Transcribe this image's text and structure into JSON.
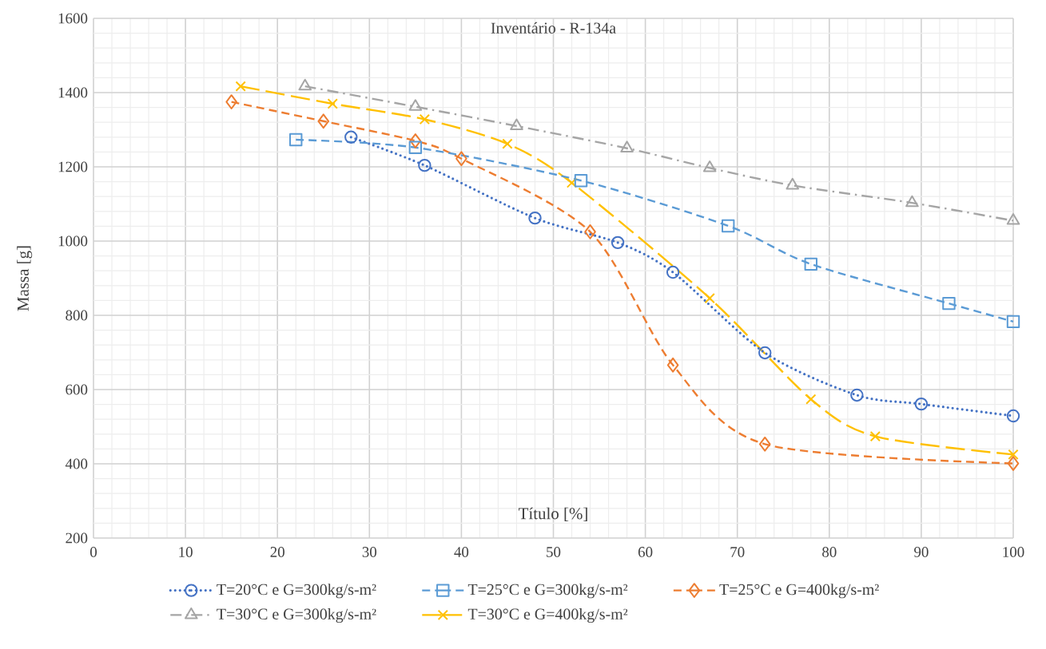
{
  "chart_data": {
    "type": "line",
    "title": "Inventário - R-134a",
    "xlabel": "Título [%]",
    "ylabel": "Massa [g]",
    "xlim": [
      0,
      100
    ],
    "ylim": [
      200,
      1600
    ],
    "xticks": [
      0,
      10,
      20,
      30,
      40,
      50,
      60,
      70,
      80,
      90,
      100
    ],
    "yticks": [
      200,
      400,
      600,
      800,
      1000,
      1200,
      1400,
      1600
    ],
    "grid": true,
    "legend": "bottom",
    "series": [
      {
        "name": "T=20°C e G=300kg/s-m²",
        "color": "#4472c4",
        "marker": "circle",
        "line_style": "dotted",
        "x": [
          28,
          36,
          48,
          57,
          63,
          73,
          83,
          90,
          100
        ],
        "values": [
          1280,
          1204,
          1062,
          996,
          916,
          699,
          585,
          561,
          529
        ]
      },
      {
        "name": "T=25°C e G=300kg/s-m²",
        "color": "#5b9bd5",
        "marker": "square",
        "line_style": "dashed",
        "x": [
          22,
          35,
          53,
          69,
          78,
          93,
          100
        ],
        "values": [
          1273,
          1252,
          1163,
          1041,
          938,
          832,
          783
        ]
      },
      {
        "name": "T=25°C e G=400kg/s-m²",
        "color": "#ed7d31",
        "marker": "diamond",
        "line_style": "dashed",
        "x": [
          15,
          25,
          35,
          40,
          54,
          63,
          73,
          100
        ],
        "values": [
          1375,
          1323,
          1270,
          1222,
          1025,
          666,
          453,
          401
        ]
      },
      {
        "name": "T=30°C e G=300kg/s-m²",
        "color": "#a5a5a5",
        "marker": "triangle",
        "line_style": "dashdot",
        "x": [
          23,
          35,
          46,
          58,
          67,
          76,
          89,
          100
        ],
        "values": [
          1417,
          1362,
          1310,
          1250,
          1197,
          1150,
          1103,
          1055
        ]
      },
      {
        "name": "T=30°C e G=400kg/s-m²",
        "color": "#ffc000",
        "marker": "cross",
        "line_style": "longdashed",
        "x": [
          16,
          26,
          36,
          45,
          52,
          67,
          78,
          85,
          100
        ],
        "values": [
          1417,
          1370,
          1328,
          1262,
          1157,
          846,
          574,
          474,
          425
        ]
      }
    ]
  }
}
